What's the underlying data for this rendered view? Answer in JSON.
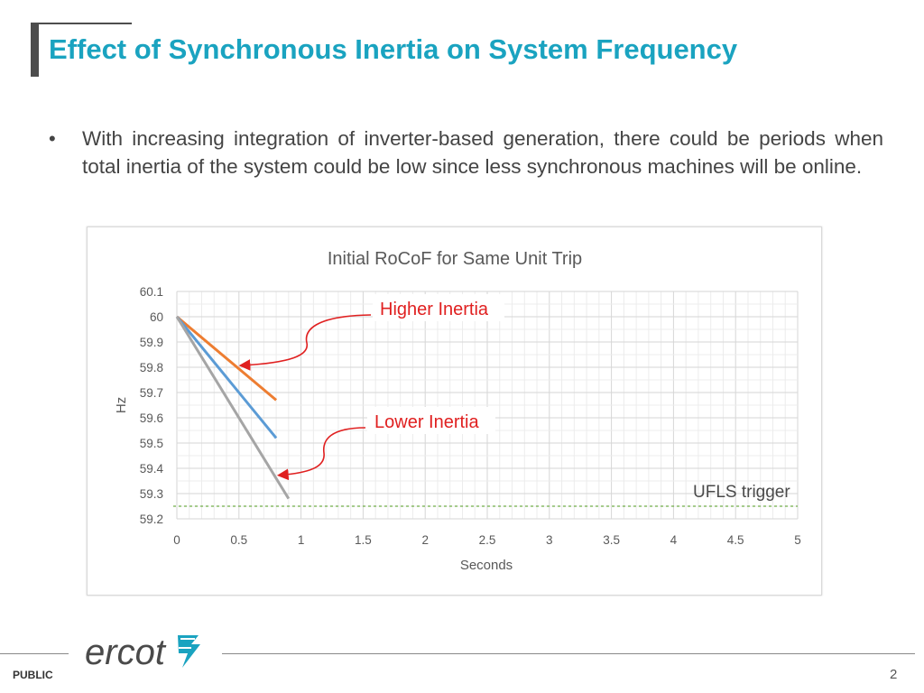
{
  "slide": {
    "title": "Effect of Synchronous Inertia on System Frequency",
    "bullet": "With increasing integration of inverter-based generation, there could be periods when total inertia of the system could be low since less synchronous machines will be online.",
    "ufls_label": "UFLS trigger",
    "footer": {
      "classification": "PUBLIC",
      "page_number": "2",
      "logo_text": "ercot"
    }
  },
  "colors": {
    "title": "#1aa3c0",
    "higher_inertia": "#ed7d31",
    "middle_inertia": "#5b9bd5",
    "lower_inertia": "#a5a5a5",
    "annotation_arrow": "#e02020",
    "ufls_line": "#70ad47"
  },
  "chart_data": {
    "type": "line",
    "title": "Initial RoCoF for Same Unit Trip",
    "xlabel": "Seconds",
    "ylabel": "Hz",
    "xlim": [
      0,
      5
    ],
    "ylim": [
      59.2,
      60.1
    ],
    "x_ticks": [
      "0",
      "0.5",
      "1",
      "1.5",
      "2",
      "2.5",
      "3",
      "3.5",
      "4",
      "4.5",
      "5"
    ],
    "y_ticks": [
      "59.2",
      "59.3",
      "59.4",
      "59.5",
      "59.6",
      "59.7",
      "59.8",
      "59.9",
      "60",
      "60.1"
    ],
    "grid": true,
    "series": [
      {
        "x": [
          0,
          0.8
        ],
        "y": [
          60.0,
          59.67
        ],
        "color": "#ed7d31"
      },
      {
        "x": [
          0,
          0.8
        ],
        "y": [
          60.0,
          59.52
        ],
        "color": "#5b9bd5"
      },
      {
        "x": [
          0,
          0.9
        ],
        "y": [
          60.0,
          59.28
        ],
        "color": "#a5a5a5"
      }
    ],
    "annotations": [
      {
        "text": "Higher Inertia",
        "points_to": {
          "x": 0.5,
          "y": 59.8
        }
      },
      {
        "text": "Lower Inertia",
        "points_to": {
          "x": 0.8,
          "y": 59.38
        }
      }
    ],
    "reference_line": {
      "label": "UFLS trigger",
      "y": 59.25
    }
  }
}
